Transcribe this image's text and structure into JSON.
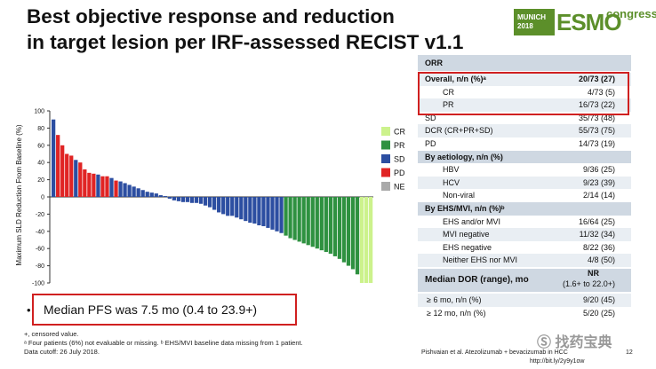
{
  "title": {
    "line1": "Best objective response and reduction",
    "line2": "in target lesion per IRF-assessed RECIST v1.1"
  },
  "logo": {
    "city": "MUNICH",
    "year": "2018",
    "brand": "ESMO",
    "suffix": "congress"
  },
  "chart_data": {
    "type": "bar",
    "ylabel": "Maximum SLD Reduction From Baseline (%)",
    "ylim": [
      -100,
      100
    ],
    "yticks": [
      "100",
      "80",
      "60",
      "40",
      "20",
      "0",
      "-20",
      "-40",
      "-60",
      "-80",
      "-100"
    ],
    "legend": [
      {
        "key": "CR",
        "color": "#ccf28c"
      },
      {
        "key": "PR",
        "color": "#2e9140"
      },
      {
        "key": "SD",
        "color": "#2c4ea1"
      },
      {
        "key": "PD",
        "color": "#e02424"
      },
      {
        "key": "NE",
        "color": "#a9a9a9"
      }
    ],
    "colors": {
      "CR": "#ccf28c",
      "PR": "#2e9140",
      "SD": "#2c4ea1",
      "PD": "#e02424",
      "NE": "#a9a9a9"
    },
    "values": [
      90,
      72,
      60,
      50,
      48,
      43,
      40,
      32,
      28,
      27,
      26,
      24,
      24,
      22,
      19,
      18,
      16,
      14,
      12,
      10,
      8,
      6,
      5,
      4,
      2,
      1,
      -2,
      -4,
      -5,
      -6,
      -6,
      -7,
      -7,
      -8,
      -10,
      -12,
      -15,
      -18,
      -20,
      -22,
      -22,
      -24,
      -26,
      -28,
      -30,
      -31,
      -33,
      -34,
      -36,
      -38,
      -40,
      -42,
      -45,
      -48,
      -50,
      -52,
      -54,
      -56,
      -58,
      -60,
      -62,
      -64,
      -66,
      -69,
      -72,
      -76,
      -80,
      -84,
      -90,
      -100,
      -100,
      -100
    ],
    "categories": [
      "SD",
      "PD",
      "PD",
      "PD",
      "PD",
      "SD",
      "PD",
      "PD",
      "PD",
      "PD",
      "SD",
      "PD",
      "PD",
      "SD",
      "PD",
      "SD",
      "SD",
      "SD",
      "SD",
      "SD",
      "SD",
      "SD",
      "SD",
      "SD",
      "SD",
      "SD",
      "SD",
      "SD",
      "SD",
      "SD",
      "SD",
      "SD",
      "SD",
      "SD",
      "SD",
      "SD",
      "SD",
      "SD",
      "SD",
      "SD",
      "SD",
      "SD",
      "SD",
      "SD",
      "SD",
      "SD",
      "SD",
      "SD",
      "SD",
      "SD",
      "SD",
      "SD",
      "PR",
      "PR",
      "PR",
      "PR",
      "PR",
      "PR",
      "PR",
      "PR",
      "PR",
      "PR",
      "PR",
      "PR",
      "PR",
      "PR",
      "PR",
      "PR",
      "PR",
      "CR",
      "CR",
      "CR"
    ]
  },
  "note": {
    "bullet": "•",
    "text": "Median PFS was 7.5 mo (0.4 to 23.9+)"
  },
  "footnotes": [
    "+, censored value.",
    "ᵃ Four patients (6%) not evaluable or missing. ᵇ EHS/MVI baseline data missing from 1 patient.",
    "Data cutoff: 26 July 2018."
  ],
  "citation": {
    "text": "Pishvaian et al. Atezolizumab + bevacizumab in HCC",
    "page": "12",
    "url": "http://bit.ly/2y9y1ow"
  },
  "watermark": "Ⓢ 找药宝典",
  "table": {
    "header": "ORR",
    "rows": [
      {
        "label": "Overall, n/n (%)ᵃ",
        "value": "20/73 (27)",
        "bold": true,
        "indent": false
      },
      {
        "label": "CR",
        "value": "4/73 (5)",
        "bold": false,
        "indent": true
      },
      {
        "label": "PR",
        "value": "16/73 (22)",
        "bold": false,
        "indent": true
      },
      {
        "label": "SD",
        "value": "35/73 (48)",
        "bold": false,
        "indent": false
      },
      {
        "label": "DCR (CR+PR+SD)",
        "value": "55/73 (75)",
        "bold": false,
        "indent": false
      },
      {
        "label": "PD",
        "value": "14/73 (19)",
        "bold": false,
        "indent": false
      },
      {
        "label": "By aetiology, n/n (%)",
        "value": "",
        "bold": true,
        "indent": false
      },
      {
        "label": "HBV",
        "value": "9/36 (25)",
        "bold": false,
        "indent": true
      },
      {
        "label": "HCV",
        "value": "9/23 (39)",
        "bold": false,
        "indent": true
      },
      {
        "label": "Non-viral",
        "value": "2/14 (14)",
        "bold": false,
        "indent": true
      },
      {
        "label": "By EHS/MVI, n/n (%)ᵇ",
        "value": "",
        "bold": true,
        "indent": false
      },
      {
        "label": "EHS and/or MVI",
        "value": "16/64 (25)",
        "bold": false,
        "indent": true
      },
      {
        "label": "MVI negative",
        "value": "11/32 (34)",
        "bold": false,
        "indent": true
      },
      {
        "label": "EHS negative",
        "value": "8/22 (36)",
        "bold": false,
        "indent": true
      },
      {
        "label": "Neither EHS nor MVI",
        "value": "4/8 (50)",
        "bold": false,
        "indent": true
      }
    ],
    "dor": {
      "label": "Median DOR (range), mo",
      "value1": "NR",
      "value2": "(1.6+ to 22.0+)"
    },
    "dor_rows": [
      {
        "label": "≥ 6 mo, n/n (%)",
        "value": "9/20 (45)"
      },
      {
        "label": "≥ 12 mo, n/n (%)",
        "value": "5/20 (25)"
      }
    ]
  }
}
